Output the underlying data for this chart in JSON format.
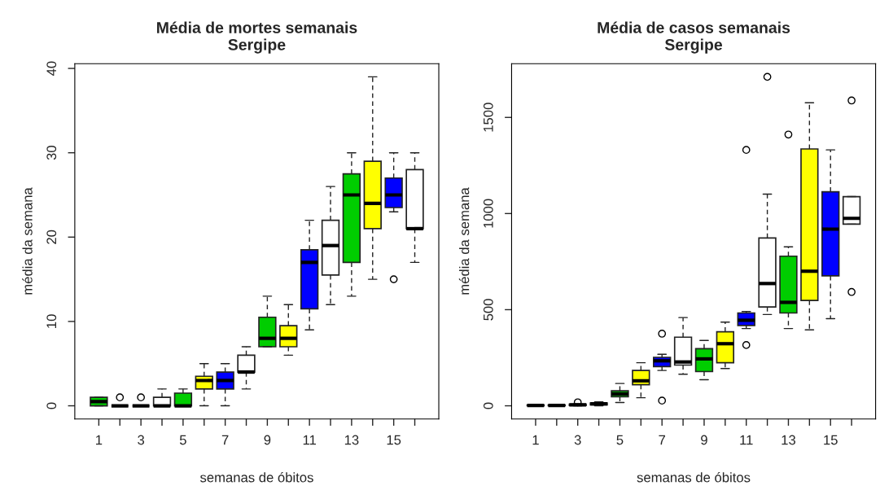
{
  "chart_data": [
    {
      "type": "box",
      "title": "Média de mortes semanais\nSergipe",
      "xlabel": "semanas de óbitos",
      "ylabel": "média da semana",
      "categories": [
        "1",
        null,
        "3",
        null,
        "5",
        null,
        "7",
        null,
        "9",
        null,
        "11",
        null,
        "13",
        null,
        "15",
        null
      ],
      "colors": [
        "#00cd00",
        null,
        null,
        "#ffffff",
        "#00cd00",
        "#ffff00",
        "#0000ff",
        "#ffffff",
        "#00cd00",
        "#ffff00",
        "#0000ff",
        "#ffffff",
        "#00cd00",
        "#ffff00",
        "#0000ff",
        "#ffffff"
      ],
      "boxes": [
        {
          "low": 0,
          "q1": 0,
          "median": 0.5,
          "q3": 1,
          "high": 1
        },
        {
          "low": 0,
          "q1": 0,
          "median": 0,
          "q3": 0,
          "high": 0,
          "outliers": [
            1
          ]
        },
        {
          "low": 0,
          "q1": 0,
          "median": 0,
          "q3": 0,
          "high": 0,
          "outliers": [
            1
          ]
        },
        {
          "low": 0,
          "q1": 0,
          "median": 0,
          "q3": 1,
          "high": 2
        },
        {
          "low": 0,
          "q1": 0,
          "median": 0,
          "q3": 1.5,
          "high": 2
        },
        {
          "low": 0,
          "q1": 2,
          "median": 3,
          "q3": 3.5,
          "high": 5
        },
        {
          "low": 0,
          "q1": 2,
          "median": 3,
          "q3": 4,
          "high": 5
        },
        {
          "low": 2,
          "q1": 4,
          "median": 4,
          "q3": 6,
          "high": 7
        },
        {
          "low": 7,
          "q1": 7,
          "median": 8,
          "q3": 10.5,
          "high": 13
        },
        {
          "low": 6,
          "q1": 7,
          "median": 8,
          "q3": 9.5,
          "high": 12
        },
        {
          "low": 9,
          "q1": 11.5,
          "median": 17,
          "q3": 18.5,
          "high": 22
        },
        {
          "low": 12,
          "q1": 15.5,
          "median": 19,
          "q3": 22,
          "high": 26
        },
        {
          "low": 13,
          "q1": 17,
          "median": 25,
          "q3": 27.5,
          "high": 30
        },
        {
          "low": 15,
          "q1": 21,
          "median": 24,
          "q3": 29,
          "high": 39
        },
        {
          "low": 23,
          "q1": 23.5,
          "median": 25,
          "q3": 27,
          "high": 30,
          "outliers": [
            15
          ]
        },
        {
          "low": 17,
          "q1": 21,
          "median": 21,
          "q3": 28,
          "high": 30
        }
      ],
      "ylim": [
        -1.56,
        40.56
      ],
      "yticks": [
        0,
        10,
        20,
        30,
        40
      ],
      "grid": false
    },
    {
      "type": "box",
      "title": "Média de casos semanais\nSergipe",
      "xlabel": "semanas de óbitos",
      "ylabel": "média da semana",
      "categories": [
        "1",
        null,
        "3",
        null,
        "5",
        null,
        "7",
        null,
        "9",
        null,
        "11",
        null,
        "13",
        null,
        "15",
        null
      ],
      "colors": [
        "#00cd00",
        "#ffff00",
        "#0000ff",
        "#ffffff",
        "#00cd00",
        "#ffff00",
        "#0000ff",
        "#ffffff",
        "#00cd00",
        "#ffff00",
        "#0000ff",
        "#ffffff",
        "#00cd00",
        "#ffff00",
        "#0000ff",
        "#ffffff"
      ],
      "boxes": [
        {
          "low": 0,
          "q1": 1,
          "median": 2,
          "q3": 4,
          "high": 5
        },
        {
          "low": 0,
          "q1": 1,
          "median": 2,
          "q3": 4,
          "high": 5
        },
        {
          "low": 0,
          "q1": 2,
          "median": 5,
          "q3": 8,
          "high": 10,
          "outliers": [
            18
          ]
        },
        {
          "low": 0,
          "q1": 5,
          "median": 10,
          "q3": 15,
          "high": 21
        },
        {
          "low": 17,
          "q1": 47,
          "median": 62,
          "q3": 78,
          "high": 116
        },
        {
          "low": 42,
          "q1": 110,
          "median": 130,
          "q3": 184,
          "high": 224
        },
        {
          "low": 184,
          "q1": 204,
          "median": 234,
          "q3": 252,
          "high": 268,
          "outliers": [
            375,
            27
          ]
        },
        {
          "low": 164,
          "q1": 212,
          "median": 228,
          "q3": 357,
          "high": 459
        },
        {
          "low": 136,
          "q1": 178,
          "median": 244,
          "q3": 297,
          "high": 340
        },
        {
          "low": 194,
          "q1": 224,
          "median": 323,
          "q3": 385,
          "high": 435
        },
        {
          "low": 402,
          "q1": 418,
          "median": 445,
          "q3": 483,
          "high": 490,
          "outliers": [
            1331,
            316
          ]
        },
        {
          "low": 475,
          "q1": 514,
          "median": 636,
          "q3": 873,
          "high": 1101,
          "outliers": [
            1711
          ]
        },
        {
          "low": 402,
          "q1": 483,
          "median": 538,
          "q3": 778,
          "high": 827,
          "outliers": [
            1411
          ]
        },
        {
          "low": 395,
          "q1": 548,
          "median": 700,
          "q3": 1336,
          "high": 1576
        },
        {
          "low": 453,
          "q1": 676,
          "median": 919,
          "q3": 1113,
          "high": 1331
        },
        {
          "low": 945,
          "q1": 945,
          "median": 975,
          "q3": 1088,
          "high": 1088,
          "outliers": [
            1588,
            592
          ]
        }
      ],
      "ylim": [
        -68.4,
        1779.4
      ],
      "yticks": [
        0,
        500,
        1000,
        1500
      ],
      "grid": false
    }
  ]
}
